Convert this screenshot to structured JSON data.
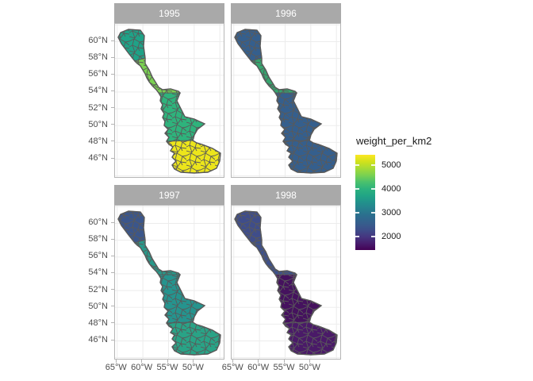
{
  "chart_data": {
    "type": "heatmap",
    "subtype": "faceted-choropleth-map",
    "description": "Four-panel faceted map (ggplot-style) of a NW-SE coastal shelf region, polygons colored by weight_per_km2 with a viridis scale",
    "facets": [
      {
        "label": "1995",
        "zones": {
          "north": "#1fa287",
          "band": "#7ad151",
          "middle": "#2eb37c",
          "south": "#ece51b"
        },
        "values_est": {
          "north": 3900,
          "band": 4600,
          "middle": 4100,
          "south": 5200
        }
      },
      {
        "label": "1996",
        "zones": {
          "north": "#355f8d",
          "band": "#35a56e",
          "middle": "#355f8d",
          "south": "#355f8d"
        },
        "values_est": {
          "north": 2500,
          "band": 3800,
          "middle": 2500,
          "south": 2500
        }
      },
      {
        "label": "1997",
        "zones": {
          "north": "#3b568b",
          "band": "#27998a",
          "middle": "#25948e",
          "south": "#29a386"
        },
        "values_est": {
          "north": 2650,
          "band": 3500,
          "middle": 3400,
          "south": 3600
        }
      },
      {
        "label": "1998",
        "zones": {
          "north": "#3f4d8a",
          "band": "#3d508b",
          "middle": "#45125e",
          "south": "#4a1a68"
        },
        "values_est": {
          "north": 2300,
          "band": 2400,
          "middle": 1600,
          "south": 1700
        }
      }
    ],
    "axes": {
      "lat_tick_labels": [
        "60°N",
        "58°N",
        "56°N",
        "54°N",
        "52°N",
        "50°N",
        "48°N",
        "46°N"
      ],
      "lon_tick_labels": [
        "65°W",
        "60°W",
        "55°W",
        "50°W"
      ],
      "lat_range_est": [
        43.6,
        62.1
      ],
      "lon_range_est": [
        -65.4,
        -43.9
      ],
      "grid": true
    },
    "legend": {
      "title": "weight_per_km2",
      "tick_labels": [
        "5000",
        "4000",
        "3000",
        "2000"
      ],
      "tick_values": [
        5000,
        4000,
        3000,
        2000
      ],
      "range_est": [
        1420,
        5420
      ],
      "position": "right",
      "palette": "viridis",
      "gradient_top_to_bottom": [
        "#fde725",
        "#d2e21b",
        "#a5db36",
        "#7ad151",
        "#4ac16d",
        "#2db27d",
        "#21a585",
        "#21918c",
        "#277f8e",
        "#2c6d8e",
        "#355f8d",
        "#3d4e8a",
        "#453781",
        "#471d6e",
        "#440154"
      ]
    },
    "style": {
      "strip_fill": "#a9a9a9",
      "strip_text_color": "#ffffff",
      "panel_background": "#ffffff",
      "gridline_color": "#ececec",
      "panel_border_color": "#b6b6b6",
      "polygon_edge_color": "#595959",
      "axis_text_color": "#4d4d4d"
    }
  }
}
